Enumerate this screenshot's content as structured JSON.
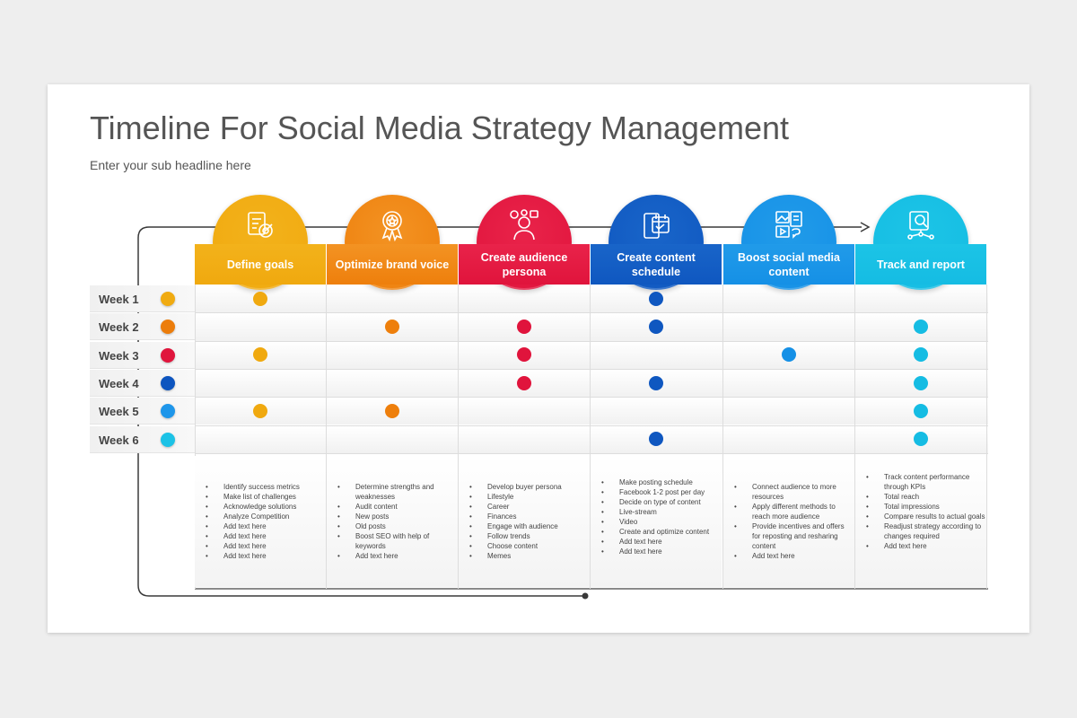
{
  "title": "Timeline For Social Media Strategy Management",
  "subtitle": "Enter your sub headline here",
  "stages": [
    {
      "label": "Define goals",
      "color": "#f3b21b",
      "circle": "#f0a90f",
      "icon": "target-checklist-icon",
      "items": [
        "Identify success metrics",
        "Make list of challenges",
        "Acknowledge solutions",
        "Analyze Competition",
        "Add text here",
        "Add text here",
        "Add text here",
        "Add text here"
      ]
    },
    {
      "label": "Optimize brand voice",
      "color": "#f39323",
      "circle": "#ee7f0c",
      "icon": "award-badge-icon",
      "items": [
        "Determine strengths and weaknesses",
        "Audit content",
        "New posts",
        "Old posts",
        "Boost SEO with help of keywords",
        "Add text here"
      ]
    },
    {
      "label": "Create audience persona",
      "color": "#e9234a",
      "circle": "#e0143c",
      "icon": "persona-icon",
      "items": [
        "Develop buyer persona",
        "Lifestyle",
        "Career",
        "Finances",
        "Engage with audience",
        "Follow trends",
        "Choose content",
        "Memes"
      ]
    },
    {
      "label": "Create content schedule",
      "color": "#1965c9",
      "circle": "#0f57c0",
      "icon": "calendar-mobile-icon",
      "items": [
        "Make posting schedule",
        "Facebook 1-2 post per day",
        "Decide on type of content",
        "Live-stream",
        "Video",
        "Create and optimize content",
        "Add text here",
        "Add text here"
      ]
    },
    {
      "label": "Boost social media content",
      "color": "#219be9",
      "circle": "#1590e6",
      "icon": "social-media-icon",
      "items": [
        "Connect audience to more resources",
        "Apply different methods to reach more audience",
        "Provide incentives and offers for reposting and resharing content",
        "Add text here"
      ]
    },
    {
      "label": "Track and report",
      "color": "#1cc4e6",
      "circle": "#15bce3",
      "icon": "analytics-report-icon",
      "items": [
        "Track content performance through KPIs",
        "Total reach",
        "Total impressions",
        "Compare results to actual goals",
        "Readjust strategy according to changes required",
        "Add text here"
      ]
    }
  ],
  "weeks": [
    {
      "label": "Week 1",
      "color": "#f0ab11",
      "marks": [
        0,
        3
      ]
    },
    {
      "label": "Week 2",
      "color": "#ec7d0b",
      "marks": [
        1,
        2,
        3,
        5
      ]
    },
    {
      "label": "Week 3",
      "color": "#e0153c",
      "marks": [
        0,
        2,
        4,
        5
      ]
    },
    {
      "label": "Week 4",
      "color": "#0d55bf",
      "marks": [
        2,
        3,
        5
      ]
    },
    {
      "label": "Week 5",
      "color": "#1e96ea",
      "marks": [
        0,
        1,
        5
      ]
    },
    {
      "label": "Week 6",
      "color": "#1cc2e6",
      "marks": [
        3,
        5
      ]
    }
  ]
}
